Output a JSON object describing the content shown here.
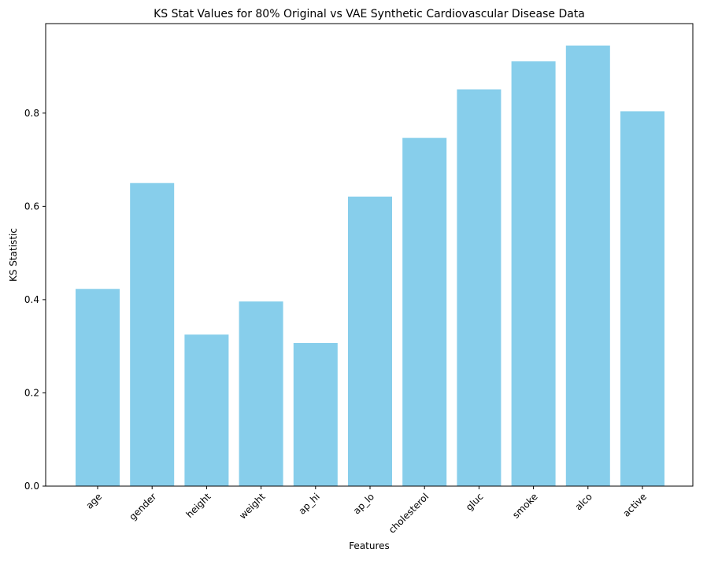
{
  "chart_data": {
    "type": "bar",
    "title": "KS Stat Values for 80% Original vs VAE Synthetic Cardiovascular Disease Data",
    "xlabel": "Features",
    "ylabel": "KS Statistic",
    "categories": [
      "age",
      "gender",
      "height",
      "weight",
      "ap_hi",
      "ap_lo",
      "cholesterol",
      "gluc",
      "smoke",
      "alco",
      "active"
    ],
    "values": [
      0.423,
      0.65,
      0.325,
      0.396,
      0.307,
      0.621,
      0.747,
      0.851,
      0.911,
      0.945,
      0.804
    ],
    "ylim": [
      0,
      0.992
    ],
    "yticks": [
      0.0,
      0.2,
      0.4,
      0.6,
      0.8
    ],
    "ytick_labels": [
      "0.0",
      "0.2",
      "0.4",
      "0.6",
      "0.8"
    ],
    "bar_color": "#87ceeb",
    "grid": false,
    "legend": "none"
  }
}
